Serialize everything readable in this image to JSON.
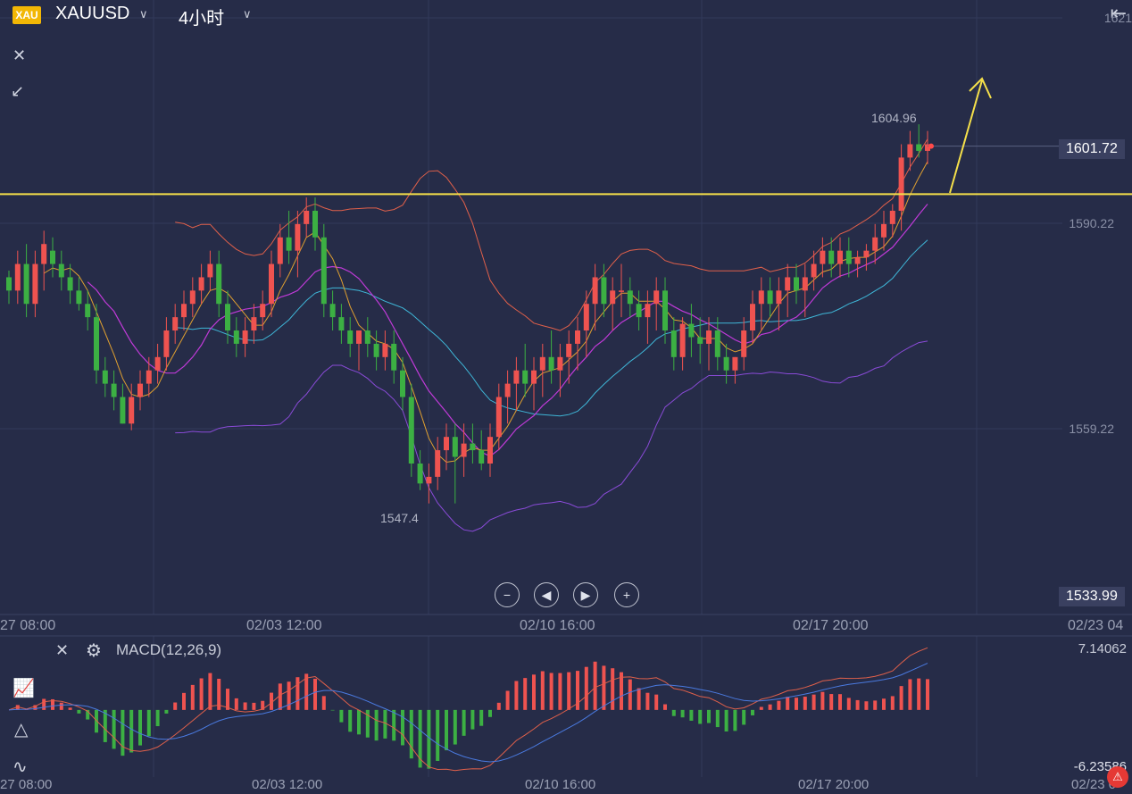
{
  "header": {
    "badge": "XAU",
    "symbol": "XAUUSD",
    "timeframe": "4小时"
  },
  "main_chart": {
    "price_axis": [
      "1621",
      "1590.22",
      "1559.22",
      "1533.99"
    ],
    "current_price": "1601.72",
    "high_label": "1604.96",
    "low_label": "1547.4",
    "date_labels": [
      "27 08:00",
      "02/03 12:00",
      "02/10 16:00",
      "02/17 20:00",
      "02/23 04"
    ],
    "horizontal_line_price": 1594.5
  },
  "macd": {
    "label": "MACD(12,26,9)",
    "top_value": "7.14062",
    "bottom_value": "-6.23586",
    "date_labels": [
      "27 08:00",
      "02/03 12:00",
      "02/10 16:00",
      "02/17 20:00",
      "02/23 0"
    ]
  },
  "colors": {
    "up": "#ef5350",
    "down": "#3cb043",
    "background": "#262c48",
    "line_yellow": "#f5e04a"
  },
  "chart_data": {
    "type": "candlestick",
    "title": "XAUUSD",
    "interval": "4小时",
    "candles": [
      [
        1582,
        1583,
        1578,
        1580
      ],
      [
        1580,
        1586,
        1578,
        1584
      ],
      [
        1584,
        1587,
        1576,
        1578
      ],
      [
        1578,
        1586,
        1576,
        1584
      ],
      [
        1584,
        1589,
        1580,
        1587
      ],
      [
        1586,
        1588,
        1582,
        1584
      ],
      [
        1584,
        1586,
        1580,
        1582
      ],
      [
        1582,
        1584,
        1578,
        1580
      ],
      [
        1580,
        1582,
        1577,
        1578
      ],
      [
        1578,
        1580,
        1574,
        1576
      ],
      [
        1576,
        1578,
        1566,
        1568
      ],
      [
        1568,
        1570,
        1564,
        1566
      ],
      [
        1566,
        1568,
        1562,
        1564
      ],
      [
        1564,
        1566,
        1560,
        1560
      ],
      [
        1560,
        1566,
        1559,
        1564
      ],
      [
        1564,
        1568,
        1562,
        1566
      ],
      [
        1566,
        1570,
        1564,
        1568
      ],
      [
        1568,
        1572,
        1566,
        1570
      ],
      [
        1570,
        1576,
        1568,
        1574
      ],
      [
        1574,
        1578,
        1572,
        1576
      ],
      [
        1576,
        1580,
        1574,
        1578
      ],
      [
        1578,
        1582,
        1576,
        1580
      ],
      [
        1580,
        1584,
        1578,
        1582
      ],
      [
        1582,
        1586,
        1580,
        1584
      ],
      [
        1584,
        1586,
        1576,
        1578
      ],
      [
        1578,
        1580,
        1572,
        1574
      ],
      [
        1574,
        1576,
        1570,
        1572
      ],
      [
        1572,
        1576,
        1570,
        1574
      ],
      [
        1574,
        1578,
        1572,
        1576
      ],
      [
        1576,
        1580,
        1574,
        1578
      ],
      [
        1578,
        1586,
        1576,
        1584
      ],
      [
        1584,
        1590,
        1582,
        1588
      ],
      [
        1588,
        1592,
        1584,
        1586
      ],
      [
        1586,
        1592,
        1582,
        1590
      ],
      [
        1590,
        1594,
        1588,
        1592
      ],
      [
        1592,
        1594,
        1586,
        1588
      ],
      [
        1588,
        1590,
        1576,
        1578
      ],
      [
        1578,
        1580,
        1574,
        1576
      ],
      [
        1576,
        1578,
        1572,
        1574
      ],
      [
        1574,
        1576,
        1570,
        1572
      ],
      [
        1572,
        1574,
        1568,
        1574
      ],
      [
        1574,
        1576,
        1570,
        1572
      ],
      [
        1572,
        1574,
        1568,
        1570
      ],
      [
        1570,
        1574,
        1568,
        1572
      ],
      [
        1572,
        1574,
        1566,
        1568
      ],
      [
        1568,
        1570,
        1562,
        1564
      ],
      [
        1564,
        1566,
        1552,
        1554
      ],
      [
        1554,
        1556,
        1550,
        1551
      ],
      [
        1551,
        1554,
        1548,
        1552
      ],
      [
        1552,
        1558,
        1550,
        1556
      ],
      [
        1556,
        1560,
        1553,
        1558
      ],
      [
        1558,
        1560,
        1548,
        1555
      ],
      [
        1555,
        1560,
        1552,
        1557
      ],
      [
        1557,
        1560,
        1554,
        1556
      ],
      [
        1556,
        1559,
        1553,
        1554
      ],
      [
        1554,
        1560,
        1552,
        1558
      ],
      [
        1558,
        1566,
        1556,
        1564
      ],
      [
        1564,
        1568,
        1560,
        1566
      ],
      [
        1566,
        1570,
        1562,
        1568
      ],
      [
        1568,
        1572,
        1564,
        1566
      ],
      [
        1566,
        1570,
        1562,
        1568
      ],
      [
        1568,
        1572,
        1564,
        1570
      ],
      [
        1570,
        1574,
        1566,
        1568
      ],
      [
        1568,
        1572,
        1564,
        1570
      ],
      [
        1570,
        1574,
        1566,
        1572
      ],
      [
        1572,
        1576,
        1568,
        1574
      ],
      [
        1574,
        1580,
        1570,
        1578
      ],
      [
        1578,
        1584,
        1574,
        1582
      ],
      [
        1582,
        1584,
        1576,
        1578
      ],
      [
        1578,
        1582,
        1574,
        1580
      ],
      [
        1580,
        1584,
        1576,
        1580
      ],
      [
        1580,
        1582,
        1576,
        1578
      ],
      [
        1578,
        1580,
        1574,
        1576
      ],
      [
        1576,
        1580,
        1572,
        1578
      ],
      [
        1578,
        1582,
        1574,
        1580
      ],
      [
        1580,
        1582,
        1572,
        1574
      ],
      [
        1574,
        1576,
        1568,
        1570
      ],
      [
        1570,
        1576,
        1568,
        1575
      ],
      [
        1575,
        1578,
        1570,
        1573
      ],
      [
        1573,
        1576,
        1569,
        1572
      ],
      [
        1572,
        1576,
        1568,
        1574
      ],
      [
        1574,
        1576,
        1568,
        1570
      ],
      [
        1570,
        1572,
        1566,
        1568
      ],
      [
        1568,
        1570,
        1566,
        1570
      ],
      [
        1570,
        1576,
        1568,
        1574
      ],
      [
        1574,
        1580,
        1572,
        1578
      ],
      [
        1578,
        1582,
        1574,
        1580
      ],
      [
        1580,
        1582,
        1576,
        1578
      ],
      [
        1578,
        1582,
        1574,
        1580
      ],
      [
        1580,
        1584,
        1576,
        1582
      ],
      [
        1582,
        1584,
        1578,
        1580
      ],
      [
        1580,
        1584,
        1576,
        1582
      ],
      [
        1582,
        1586,
        1580,
        1584
      ],
      [
        1584,
        1588,
        1582,
        1586
      ],
      [
        1586,
        1588,
        1582,
        1584
      ],
      [
        1584,
        1588,
        1582,
        1586
      ],
      [
        1586,
        1588,
        1582,
        1584
      ],
      [
        1584,
        1586,
        1582,
        1585
      ],
      [
        1585,
        1587,
        1583,
        1586
      ],
      [
        1586,
        1590,
        1584,
        1588
      ],
      [
        1588,
        1592,
        1586,
        1590
      ],
      [
        1590,
        1593,
        1588,
        1592
      ],
      [
        1592,
        1602,
        1589,
        1600
      ],
      [
        1600,
        1604,
        1598,
        1602
      ],
      [
        1602,
        1605,
        1600,
        1601
      ],
      [
        1601,
        1604,
        1599,
        1602
      ]
    ]
  }
}
